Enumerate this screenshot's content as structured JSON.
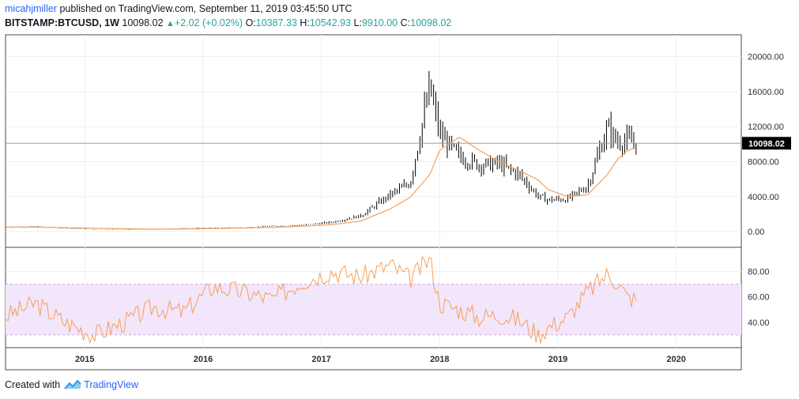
{
  "header": {
    "author": "micahjmiller",
    "published": "published on TradingView.com, September 11, 2019 03:45:50 UTC",
    "symbol": "BITSTAMP:BTCUSD, 1W",
    "price": "10098.02",
    "change": "+2.02 (+0.02%)",
    "o_label": "O:",
    "o_value": "10387.33",
    "h_label": "H:",
    "h_value": "10542.93",
    "l_label": "L:",
    "l_value": "9910.00",
    "c_label": "C:",
    "c_value": "10098.02"
  },
  "footer": {
    "created_with": "Created with",
    "brand": "TradingView",
    "logo_icon": "tradingview-logo-icon"
  },
  "colors": {
    "bars": "#000000",
    "ma": "#f5a05a",
    "rsi": "#f5a05a",
    "rsi_band": "#f3e5fb",
    "grid": "#eceff3",
    "last_price_bg": "#000000"
  },
  "chart_data": [
    {
      "type": "line",
      "subtype": "ohlc-bars",
      "title": "",
      "x": [
        "2014-05",
        "2014-08",
        "2014-11",
        "2015-02",
        "2015-05",
        "2015-08",
        "2015-11",
        "2016-02",
        "2016-05",
        "2016-08",
        "2016-11",
        "2017-02",
        "2017-05",
        "2017-08",
        "2017-10",
        "2017-12",
        "2018-01",
        "2018-03",
        "2018-05",
        "2018-07",
        "2018-09",
        "2018-11",
        "2018-12",
        "2019-02",
        "2019-04",
        "2019-06",
        "2019-07",
        "2019-08",
        "2019-09"
      ],
      "series": [
        {
          "name": "",
          "values": [
            500,
            550,
            380,
            240,
            230,
            230,
            370,
            400,
            450,
            600,
            720,
            1050,
            1800,
            4200,
            5500,
            16500,
            11000,
            8500,
            7600,
            7700,
            6500,
            4000,
            3600,
            3700,
            5200,
            11800,
            10200,
            10300,
            10098
          ]
        }
      ],
      "ma": [
        520,
        500,
        450,
        380,
        320,
        270,
        290,
        340,
        400,
        480,
        600,
        780,
        1200,
        2600,
        3900,
        6500,
        9300,
        10800,
        9300,
        8000,
        7000,
        5900,
        4800,
        4000,
        4200,
        6500,
        8200,
        9200,
        9700
      ],
      "yticks": [
        "0.00",
        "4000.00",
        "8000.00",
        "12000.00",
        "16000.00",
        "20000.00"
      ],
      "ylim": [
        -1800,
        22500
      ],
      "last_price": "10098.02",
      "xticks": [
        "2015",
        "2016",
        "2017",
        "2018",
        "2019",
        "2020"
      ],
      "grid": true
    },
    {
      "type": "line",
      "title": "",
      "x": [
        "2014-05",
        "2014-08",
        "2014-11",
        "2015-02",
        "2015-05",
        "2015-08",
        "2015-11",
        "2016-02",
        "2016-05",
        "2016-08",
        "2016-11",
        "2017-02",
        "2017-05",
        "2017-08",
        "2017-10",
        "2017-12",
        "2018-01",
        "2018-03",
        "2018-05",
        "2018-07",
        "2018-09",
        "2018-11",
        "2018-12",
        "2019-02",
        "2019-04",
        "2019-06",
        "2019-07",
        "2019-08",
        "2019-09"
      ],
      "series": [
        {
          "name": "",
          "values": [
            45,
            55,
            40,
            30,
            40,
            52,
            48,
            68,
            64,
            58,
            72,
            80,
            76,
            85,
            74,
            90,
            55,
            50,
            44,
            46,
            42,
            30,
            36,
            44,
            64,
            78,
            72,
            60,
            58
          ]
        }
      ],
      "band": [
        30,
        70
      ],
      "yticks": [
        "40.00",
        "60.00",
        "80.00"
      ],
      "ylim": [
        20,
        99
      ]
    }
  ]
}
